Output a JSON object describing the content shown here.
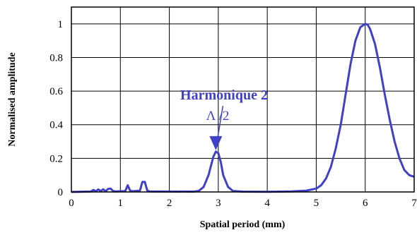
{
  "chart_data": {
    "type": "line",
    "xlabel": "Spatial period (mm)",
    "ylabel": "Normalised amplitude",
    "xlim": [
      0,
      7
    ],
    "ylim": [
      0,
      1.1
    ],
    "x_ticks": [
      "0",
      "1",
      "2",
      "3",
      "4",
      "5",
      "6",
      "7"
    ],
    "y_ticks": [
      "0",
      "0.2",
      "0.4",
      "0.6",
      "0.8",
      "1"
    ],
    "grid": true,
    "series": [
      {
        "color": "#4040c8",
        "x": [
          0,
          0.4,
          0.45,
          0.5,
          0.55,
          0.6,
          0.65,
          0.7,
          0.75,
          0.8,
          0.85,
          0.9,
          1.1,
          1.15,
          1.2,
          1.25,
          1.4,
          1.45,
          1.5,
          1.55,
          1.6,
          2.5,
          2.6,
          2.7,
          2.8,
          2.9,
          2.95,
          3.0,
          3.05,
          3.1,
          3.2,
          3.3,
          3.5,
          4.0,
          4.5,
          4.8,
          5.0,
          5.1,
          5.2,
          5.3,
          5.4,
          5.5,
          5.6,
          5.7,
          5.8,
          5.9,
          6.0,
          6.05,
          6.1,
          6.2,
          6.3,
          6.4,
          6.5,
          6.6,
          6.7,
          6.8,
          6.9,
          7.0
        ],
        "y": [
          0,
          0.003,
          0.012,
          0.004,
          0.015,
          0.005,
          0.016,
          0.004,
          0.018,
          0.02,
          0.006,
          0.003,
          0.005,
          0.04,
          0.008,
          0.004,
          0.008,
          0.06,
          0.06,
          0.008,
          0.003,
          0.002,
          0.006,
          0.03,
          0.1,
          0.21,
          0.24,
          0.23,
          0.18,
          0.1,
          0.03,
          0.006,
          0.002,
          0.001,
          0.003,
          0.008,
          0.02,
          0.04,
          0.08,
          0.15,
          0.26,
          0.4,
          0.58,
          0.76,
          0.9,
          0.98,
          1.0,
          0.995,
          0.97,
          0.88,
          0.74,
          0.58,
          0.43,
          0.3,
          0.2,
          0.13,
          0.1,
          0.09
        ]
      }
    ],
    "annotations": {
      "harmonic_label": "Harmonique 2",
      "lambda_label": "Λ /2",
      "arrow_target": {
        "x": 2.95,
        "y": 0.24
      }
    }
  }
}
